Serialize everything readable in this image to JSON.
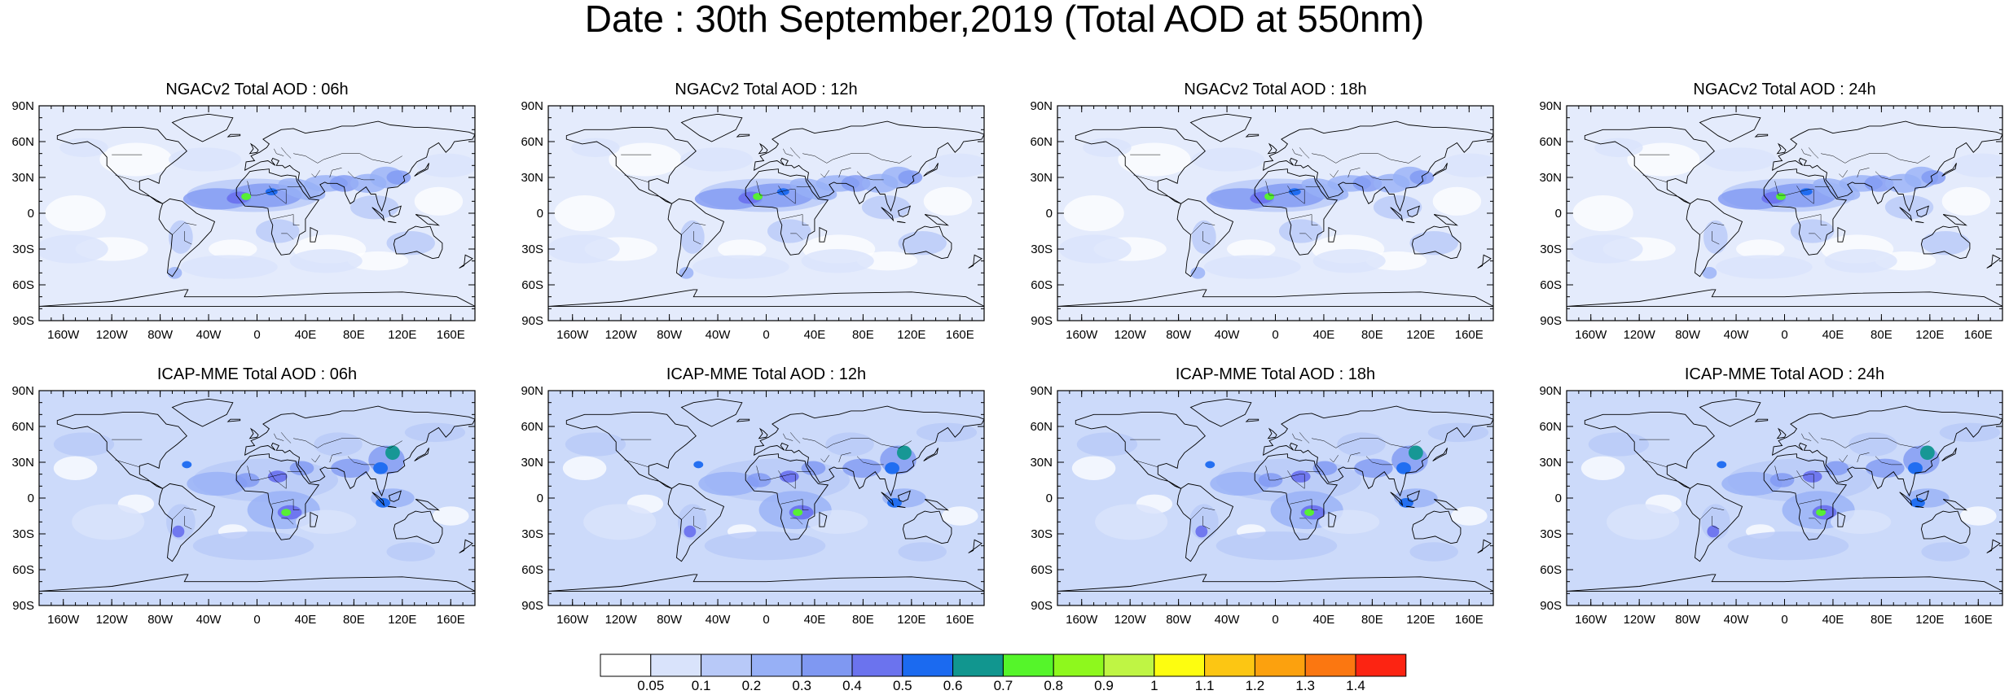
{
  "title": "Date : 30th September,2019 (Total AOD at 550nm)",
  "panels": [
    {
      "title": "NGACv2 Total AOD : 06h",
      "model": "NGACv2"
    },
    {
      "title": "NGACv2 Total AOD : 12h",
      "model": "NGACv2"
    },
    {
      "title": "NGACv2 Total AOD : 18h",
      "model": "NGACv2"
    },
    {
      "title": "NGACv2 Total AOD : 24h",
      "model": "NGACv2"
    },
    {
      "title": "ICAP-MME Total AOD : 06h",
      "model": "ICAP-MME"
    },
    {
      "title": "ICAP-MME Total AOD : 12h",
      "model": "ICAP-MME"
    },
    {
      "title": "ICAP-MME Total AOD : 18h",
      "model": "ICAP-MME"
    },
    {
      "title": "ICAP-MME Total AOD : 24h",
      "model": "ICAP-MME"
    }
  ],
  "lat_ticks": [
    "90N",
    "60N",
    "30N",
    "0",
    "30S",
    "60S",
    "90S"
  ],
  "lon_ticks": [
    "160W",
    "120W",
    "80W",
    "40W",
    "0",
    "40E",
    "80E",
    "120E",
    "160E"
  ],
  "colorbar": {
    "labels": [
      "0.05",
      "0.1",
      "0.2",
      "0.3",
      "0.4",
      "0.5",
      "0.6",
      "0.7",
      "0.8",
      "0.9",
      "1",
      "1.1",
      "1.2",
      "1.3",
      "1.4"
    ],
    "colors": [
      "#ffffff",
      "#d9e3fb",
      "#b8c9f8",
      "#97b0f6",
      "#7f98f2",
      "#6b73ee",
      "#1b6af0",
      "#11968f",
      "#55f52a",
      "#8ef81d",
      "#bff544",
      "#fdfd10",
      "#fcc613",
      "#fca10e",
      "#fb7711",
      "#fc2412"
    ]
  }
}
